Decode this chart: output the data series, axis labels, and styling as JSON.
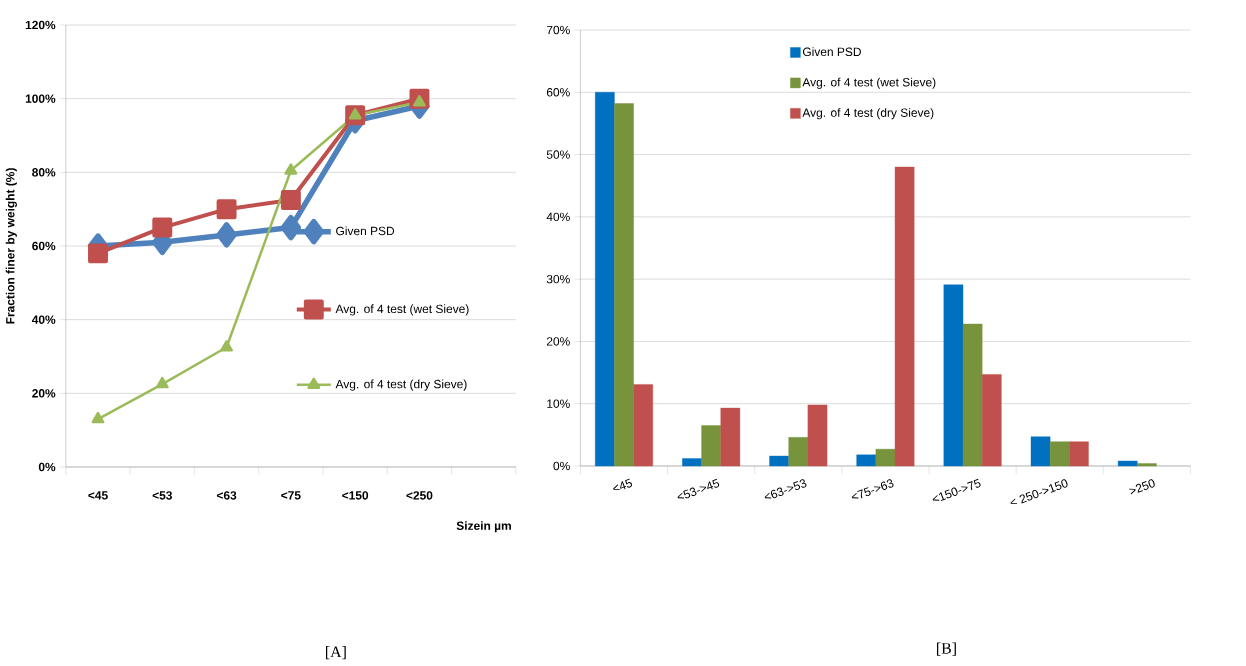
{
  "chart_data": [
    {
      "type": "line",
      "categories": [
        "<45",
        "<53",
        "<63",
        "<75",
        "<150",
        "<250",
        null
      ],
      "xlabel": "Sizein µm",
      "ylabel": "Fraction finer by weight (%)",
      "ylim": [
        0,
        120
      ],
      "yticks": [
        {
          "value": 0,
          "label": "0%"
        },
        {
          "value": 20,
          "label": "20%"
        },
        {
          "value": 40,
          "label": "40%"
        },
        {
          "value": 60,
          "label": "60%"
        },
        {
          "value": 80,
          "label": "80%"
        },
        {
          "value": 100,
          "label": "100%"
        },
        {
          "value": 120,
          "label": "120%"
        }
      ],
      "grid": "y",
      "legend": "right",
      "line_style": "solid",
      "series": [
        {
          "name": "Given PSD",
          "color": "#4f81bd",
          "marker": "diamond",
          "values": [
            60,
            61,
            63,
            65,
            94,
            98,
            null
          ]
        },
        {
          "name": "Avg. of 4 test (wet Sieve)",
          "color": "#c0504d",
          "marker": "square",
          "values": [
            58,
            65,
            70,
            72.5,
            95.5,
            100,
            null
          ]
        },
        {
          "name": "Avg. of 4 test (dry Sieve)",
          "color": "#9bbb59",
          "marker": "triangle",
          "values": [
            13,
            22.5,
            32.5,
            80.5,
            95.5,
            99,
            null
          ]
        }
      ],
      "annotations": [
        "[A]"
      ]
    },
    {
      "type": "bar",
      "categories": [
        "<45",
        "<53->45",
        "<63->53",
        "<75->63",
        "<150->75",
        "< 250->150",
        ">250"
      ],
      "ylim": [
        0,
        70
      ],
      "yticks": [
        {
          "value": 0,
          "label": "0%"
        },
        {
          "value": 10,
          "label": "10%"
        },
        {
          "value": 20,
          "label": "20%"
        },
        {
          "value": 30,
          "label": "30%"
        },
        {
          "value": 40,
          "label": "40%"
        },
        {
          "value": 50,
          "label": "50%"
        },
        {
          "value": 60,
          "label": "60%"
        },
        {
          "value": 70,
          "label": "70%"
        }
      ],
      "grid": "y",
      "legend": "top",
      "series": [
        {
          "name": "Given PSD",
          "color": "#0070c0",
          "values": [
            60,
            1.2,
            1.6,
            1.8,
            29.1,
            4.7,
            0.8
          ]
        },
        {
          "name": "Avg. of 4 test (wet Sieve)",
          "color": "#77933c",
          "values": [
            58.2,
            6.5,
            4.6,
            2.7,
            22.8,
            3.9,
            0.4
          ]
        },
        {
          "name": "Avg. of 4 test (dry Sieve)",
          "color": "#c0504d",
          "values": [
            13.1,
            9.3,
            9.8,
            48,
            14.7,
            3.9,
            null
          ]
        }
      ],
      "annotations": [
        "[B]"
      ]
    }
  ]
}
